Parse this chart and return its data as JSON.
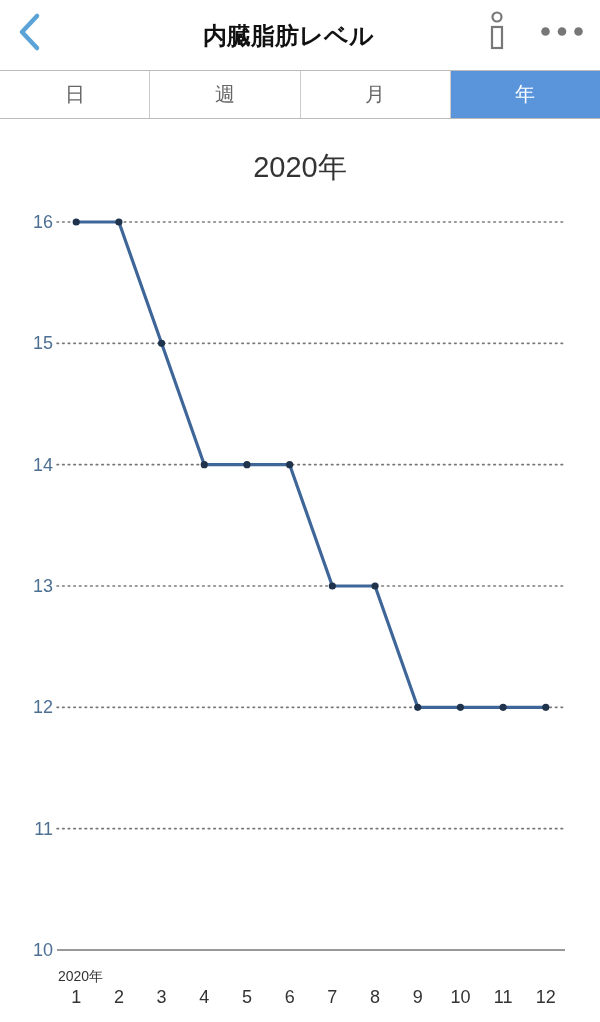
{
  "chart_data": {
    "type": "line",
    "title": "内臓脂肪レベル",
    "subtitle": "2020年",
    "xlabel": "2020年",
    "annotations": [
      "日",
      "週",
      "月",
      "年"
    ],
    "categories": [
      "1",
      "2",
      "3",
      "4",
      "5",
      "6",
      "7",
      "8",
      "9",
      "10",
      "11",
      "12"
    ],
    "series": [
      {
        "color": "#3f6698",
        "values": [
          16,
          16,
          15,
          14,
          14,
          14,
          13,
          13,
          12,
          12,
          12,
          12
        ]
      }
    ],
    "ylim": [
      10,
      16
    ],
    "yticks": [
      10,
      11,
      12,
      13,
      14,
      15,
      16
    ],
    "grid": "y",
    "marker": "circle",
    "line_style": "solid"
  }
}
